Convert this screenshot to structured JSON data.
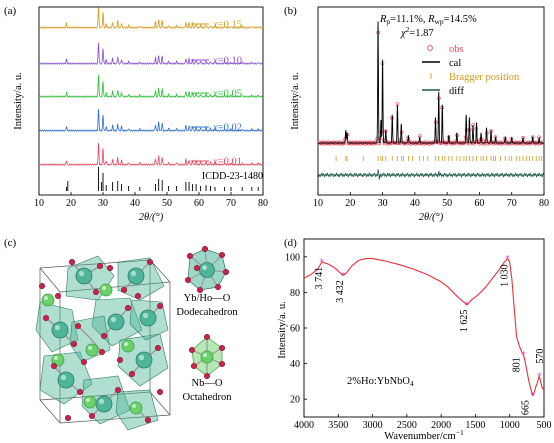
{
  "chart_data": [
    {
      "panel": "(a)",
      "type": "line",
      "xlabel": "2θ/(°)",
      "ylabel": "Intensity/a. u.",
      "xlim": [
        10,
        80
      ],
      "xticks": [
        "10",
        "20",
        "30",
        "40",
        "50",
        "60",
        "70",
        "80"
      ],
      "reference_label": "ICDD-23-1480",
      "reference_peaks": [
        18.6,
        19.0,
        28.6,
        29.5,
        30.0,
        31.0,
        33.0,
        34.6,
        35.8,
        38.0,
        41.5,
        46.4,
        47.4,
        48.5,
        50.5,
        53.0,
        55.9,
        56.9,
        58.0,
        59.1,
        60.5,
        62.2,
        63.6,
        65.0,
        68.0,
        70.0,
        73.5,
        76.5,
        78.5
      ],
      "series": [
        {
          "name": "x=0.01",
          "label": "0.01",
          "color": "#e8485f"
        },
        {
          "name": "x=0.02",
          "label": "0.02",
          "color": "#2f6fcf"
        },
        {
          "name": "x=0.05",
          "label": "0.05",
          "color": "#2fbf3a"
        },
        {
          "name": "x=0.10",
          "label": "0.10",
          "color": "#8a4fd0"
        },
        {
          "name": "x=0.15",
          "label": "0.15",
          "color": "#d59a1c"
        }
      ],
      "peaks": [
        [
          18.6,
          0.16
        ],
        [
          28.6,
          0.82
        ],
        [
          30.0,
          0.6
        ],
        [
          31.0,
          0.14
        ],
        [
          33.0,
          0.2
        ],
        [
          34.6,
          0.26
        ],
        [
          35.8,
          0.16
        ],
        [
          38.0,
          0.08
        ],
        [
          41.5,
          0.06
        ],
        [
          46.4,
          0.22
        ],
        [
          47.4,
          0.32
        ],
        [
          48.5,
          0.28
        ],
        [
          50.5,
          0.08
        ],
        [
          53.0,
          0.08
        ],
        [
          55.9,
          0.2
        ],
        [
          56.9,
          0.18
        ],
        [
          58.0,
          0.16
        ],
        [
          59.1,
          0.14
        ],
        [
          60.5,
          0.1
        ],
        [
          62.2,
          0.1
        ],
        [
          63.6,
          0.08
        ],
        [
          65.0,
          0.06
        ],
        [
          68.0,
          0.05
        ],
        [
          70.0,
          0.05
        ],
        [
          73.5,
          0.05
        ],
        [
          76.5,
          0.05
        ],
        [
          78.5,
          0.05
        ]
      ],
      "var_label": "x"
    },
    {
      "panel": "(b)",
      "type": "scatter",
      "xlabel": "2θ/(°)",
      "ylabel": "Intensity/a. u.",
      "xlim": [
        10,
        80
      ],
      "xticks": [
        "10",
        "20",
        "30",
        "40",
        "50",
        "60",
        "70",
        "80"
      ],
      "annotations": [
        "R",
        "p",
        "=11.1%, ",
        "R",
        "wp",
        "=14.5%",
        "χ",
        "2",
        "=1.87"
      ],
      "legend": [
        "obs",
        "cal",
        "Bragger position",
        "diff"
      ],
      "peaks": [
        [
          18.6,
          0.1
        ],
        [
          19.0,
          0.08
        ],
        [
          28.6,
          0.95
        ],
        [
          29.5,
          0.18
        ],
        [
          30.0,
          0.65
        ],
        [
          31.0,
          0.1
        ],
        [
          33.0,
          0.22
        ],
        [
          34.6,
          0.3
        ],
        [
          35.8,
          0.15
        ],
        [
          38.0,
          0.06
        ],
        [
          41.5,
          0.05
        ],
        [
          46.4,
          0.2
        ],
        [
          47.4,
          0.4
        ],
        [
          48.5,
          0.3
        ],
        [
          50.5,
          0.06
        ],
        [
          53.0,
          0.08
        ],
        [
          55.9,
          0.22
        ],
        [
          56.9,
          0.2
        ],
        [
          58.0,
          0.14
        ],
        [
          59.1,
          0.16
        ],
        [
          60.5,
          0.08
        ],
        [
          62.2,
          0.12
        ],
        [
          63.6,
          0.1
        ],
        [
          65.0,
          0.05
        ],
        [
          68.0,
          0.05
        ],
        [
          70.0,
          0.04
        ],
        [
          73.5,
          0.04
        ],
        [
          76.5,
          0.05
        ],
        [
          78.5,
          0.04
        ]
      ],
      "bragg_positions": [
        15.6,
        18.6,
        19.0,
        24.0,
        28.6,
        29.5,
        30.0,
        31.0,
        33.0,
        34.6,
        35.8,
        36.5,
        38.0,
        39.3,
        41.5,
        42.6,
        44.0,
        46.4,
        47.4,
        48.5,
        49.3,
        50.5,
        51.5,
        53.0,
        54.0,
        55.2,
        55.9,
        56.9,
        58.0,
        59.1,
        60.5,
        61.2,
        62.2,
        63.6,
        64.4,
        65.0,
        66.5,
        68.0,
        69.2,
        70.0,
        71.4,
        72.5,
        73.5,
        74.6,
        75.5,
        76.5,
        77.6,
        78.5,
        79.3
      ]
    },
    {
      "panel": "(c)",
      "type": "other",
      "labels": {
        "poly1_line1": "Yb/Ho—O",
        "poly1_line2": "Dodecahedron",
        "poly2_line1": "Nb—O",
        "poly2_line2": "Octahedron"
      }
    },
    {
      "panel": "(d)",
      "type": "line",
      "xlabel": "Wavenumber/cm",
      "xlabel_sup": "−1",
      "ylabel": "Intensity/a. u.",
      "xlim": [
        4000,
        500
      ],
      "ylim": [
        10,
        110
      ],
      "xticks": [
        4000,
        3500,
        3000,
        2500,
        2000,
        1500,
        1000,
        500
      ],
      "yticks": [
        20,
        40,
        60,
        80,
        100
      ],
      "sample_label": "2%Ho:YbNbO",
      "sample_sub": "4",
      "x": [
        4000,
        3900,
        3800,
        3741,
        3650,
        3560,
        3500,
        3432,
        3380,
        3300,
        3200,
        3100,
        3000,
        2800,
        2600,
        2400,
        2200,
        2000,
        1900,
        1800,
        1700,
        1650,
        1625,
        1600,
        1550,
        1450,
        1350,
        1250,
        1150,
        1080,
        1030,
        1000,
        970,
        940,
        900,
        860,
        830,
        801,
        780,
        750,
        720,
        700,
        680,
        665,
        640,
        620,
        600,
        585,
        570,
        550,
        530,
        500
      ],
      "y": [
        88,
        90,
        93,
        97,
        96,
        94,
        92,
        89.5,
        91,
        95,
        98,
        99,
        99,
        97.5,
        95.5,
        93,
        90,
        86,
        83,
        79,
        75.5,
        74,
        73,
        74,
        76,
        79,
        83,
        88,
        93,
        97,
        99,
        97,
        88,
        74,
        55,
        50,
        47,
        45,
        42,
        36,
        30,
        27,
        24,
        22,
        24,
        27,
        29,
        31,
        33,
        30,
        27,
        25
      ],
      "markers": [
        {
          "x": 3741,
          "y": 97,
          "label": "3 741"
        },
        {
          "x": 3432,
          "y": 89.5,
          "label": "3 432"
        },
        {
          "x": 1625,
          "y": 73,
          "label": "1 625"
        },
        {
          "x": 1030,
          "y": 99,
          "label": "1 030"
        },
        {
          "x": 801,
          "y": 45,
          "label": "801"
        },
        {
          "x": 665,
          "y": 22,
          "label": "665"
        },
        {
          "x": 570,
          "y": 33,
          "label": "570"
        }
      ]
    }
  ]
}
